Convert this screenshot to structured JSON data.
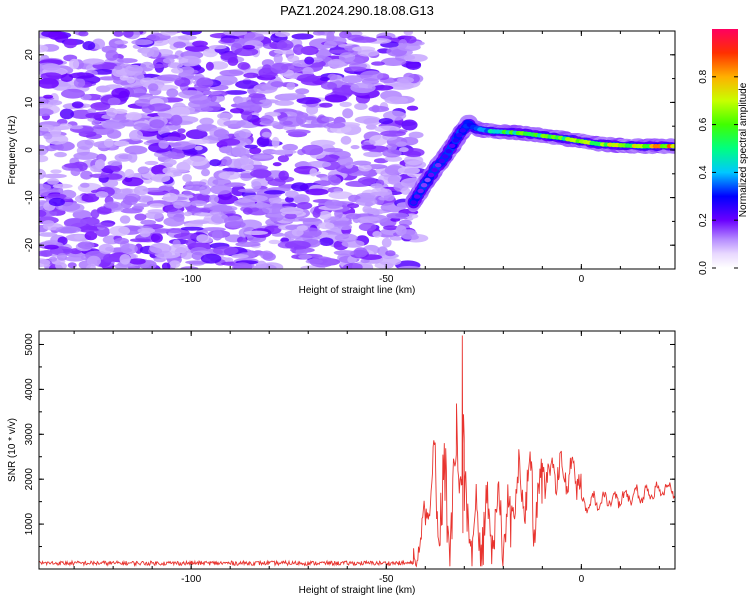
{
  "title": "PAZ1.2024.290.18.08.G13",
  "colors": {
    "snr_line": "#e8342f",
    "colormap": [
      "#ffffff",
      "#d9c2ff",
      "#8a2be2",
      "#0000ff",
      "#00c8ff",
      "#00ff40",
      "#c8ff00",
      "#ff9000",
      "#ff0030"
    ]
  },
  "chart_data": [
    {
      "type": "heatmap",
      "title": "PAZ1.2024.290.18.08.G13",
      "xlabel": "Height of straight line (km)",
      "ylabel": "Frequency (Hz)",
      "xlim": [
        -139,
        24
      ],
      "ylim": [
        -25,
        25
      ],
      "xticks": [
        -100,
        -50,
        0
      ],
      "yticks": [
        -20,
        -10,
        0,
        10,
        20
      ],
      "noise_region_x": [
        -139,
        -42
      ],
      "signal_track": {
        "x": [
          -43,
          -40,
          -37,
          -35,
          -33,
          -31,
          -29,
          -27,
          -24,
          -20,
          -15,
          -10,
          -5,
          0,
          5,
          10,
          15,
          20,
          24
        ],
        "freq": [
          -11,
          -7,
          -3.5,
          -1.5,
          1,
          3.5,
          5.5,
          4.5,
          4,
          3.8,
          3.5,
          3,
          2.5,
          1.8,
          1.2,
          1,
          0.8,
          0.8,
          0.8
        ],
        "amplitude": [
          0.22,
          0.2,
          0.22,
          0.25,
          0.28,
          0.3,
          0.38,
          0.35,
          0.42,
          0.55,
          0.6,
          0.62,
          0.6,
          0.72,
          0.7,
          0.75,
          0.7,
          0.8,
          0.85
        ]
      },
      "colorbar": {
        "label": "Normalized spectral amplitude",
        "ticks": [
          0.0,
          0.2,
          0.4,
          0.6,
          0.8
        ],
        "range": [
          0,
          1
        ]
      }
    },
    {
      "type": "line",
      "xlabel": "Height of straight line (km)",
      "ylabel": "SNR (10 * v/v)",
      "xlim": [
        -139,
        24
      ],
      "ylim": [
        0,
        5300
      ],
      "xticks": [
        -100,
        -50,
        0
      ],
      "yticks": [
        1000,
        2000,
        3000,
        4000,
        5000
      ],
      "segments": [
        {
          "x": [
            -139,
            -43
          ],
          "base": 130,
          "amp": 60
        },
        {
          "x": [
            -43,
            -38
          ],
          "base": 150,
          "amp": 900,
          "ramp_to": 1800
        },
        {
          "x": [
            -38,
            -32
          ],
          "base": 1500,
          "amp": 2400
        },
        {
          "x": [
            -32,
            -30
          ],
          "base": 2500,
          "amp": 2800
        },
        {
          "x": [
            -30,
            -18
          ],
          "base": 1000,
          "amp": 1900
        },
        {
          "x": [
            -18,
            -10
          ],
          "base": 1600,
          "amp": 1500
        },
        {
          "x": [
            -10,
            0
          ],
          "base": 2100,
          "amp": 900
        },
        {
          "x": [
            0,
            24
          ],
          "base": 1450,
          "amp": 350,
          "ramp_to": 1800
        }
      ],
      "peak": {
        "x": -30.5,
        "y": 5200
      }
    }
  ]
}
